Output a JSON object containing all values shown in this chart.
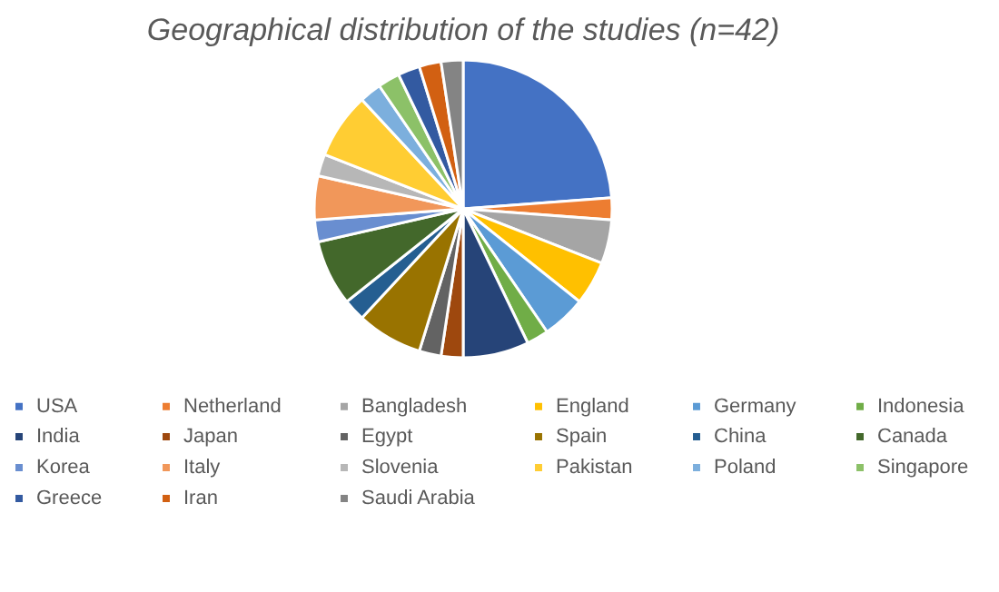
{
  "chart_data": {
    "type": "pie",
    "title": "Geographical distribution of the studies (n=42)",
    "categories": [
      "USA",
      "Netherland",
      "Bangladesh",
      "England",
      "Germany",
      "Indonesia",
      "India",
      "Japan",
      "Egypt",
      "Spain",
      "China",
      "Canada",
      "Korea",
      "Italy",
      "Slovenia",
      "Pakistan",
      "Poland",
      "Singapore",
      "Greece",
      "Iran",
      "Saudi Arabia"
    ],
    "values": [
      23.8,
      2.38,
      4.76,
      4.76,
      4.76,
      2.38,
      7.14,
      2.38,
      2.38,
      7.14,
      2.38,
      7.14,
      2.38,
      4.76,
      2.38,
      7.14,
      2.38,
      2.38,
      2.38,
      2.38,
      2.38
    ],
    "colors": [
      "#4472c4",
      "#ed7d31",
      "#a5a5a5",
      "#ffc000",
      "#5b9bd5",
      "#70ad47",
      "#264478",
      "#9e480e",
      "#636363",
      "#997300",
      "#255e91",
      "#43682b",
      "#698ed0",
      "#f1975a",
      "#b7b7b7",
      "#ffcd33",
      "#7cafdd",
      "#8cc168",
      "#335aa1",
      "#d26012",
      "#848484"
    ],
    "legend": "bottom"
  }
}
